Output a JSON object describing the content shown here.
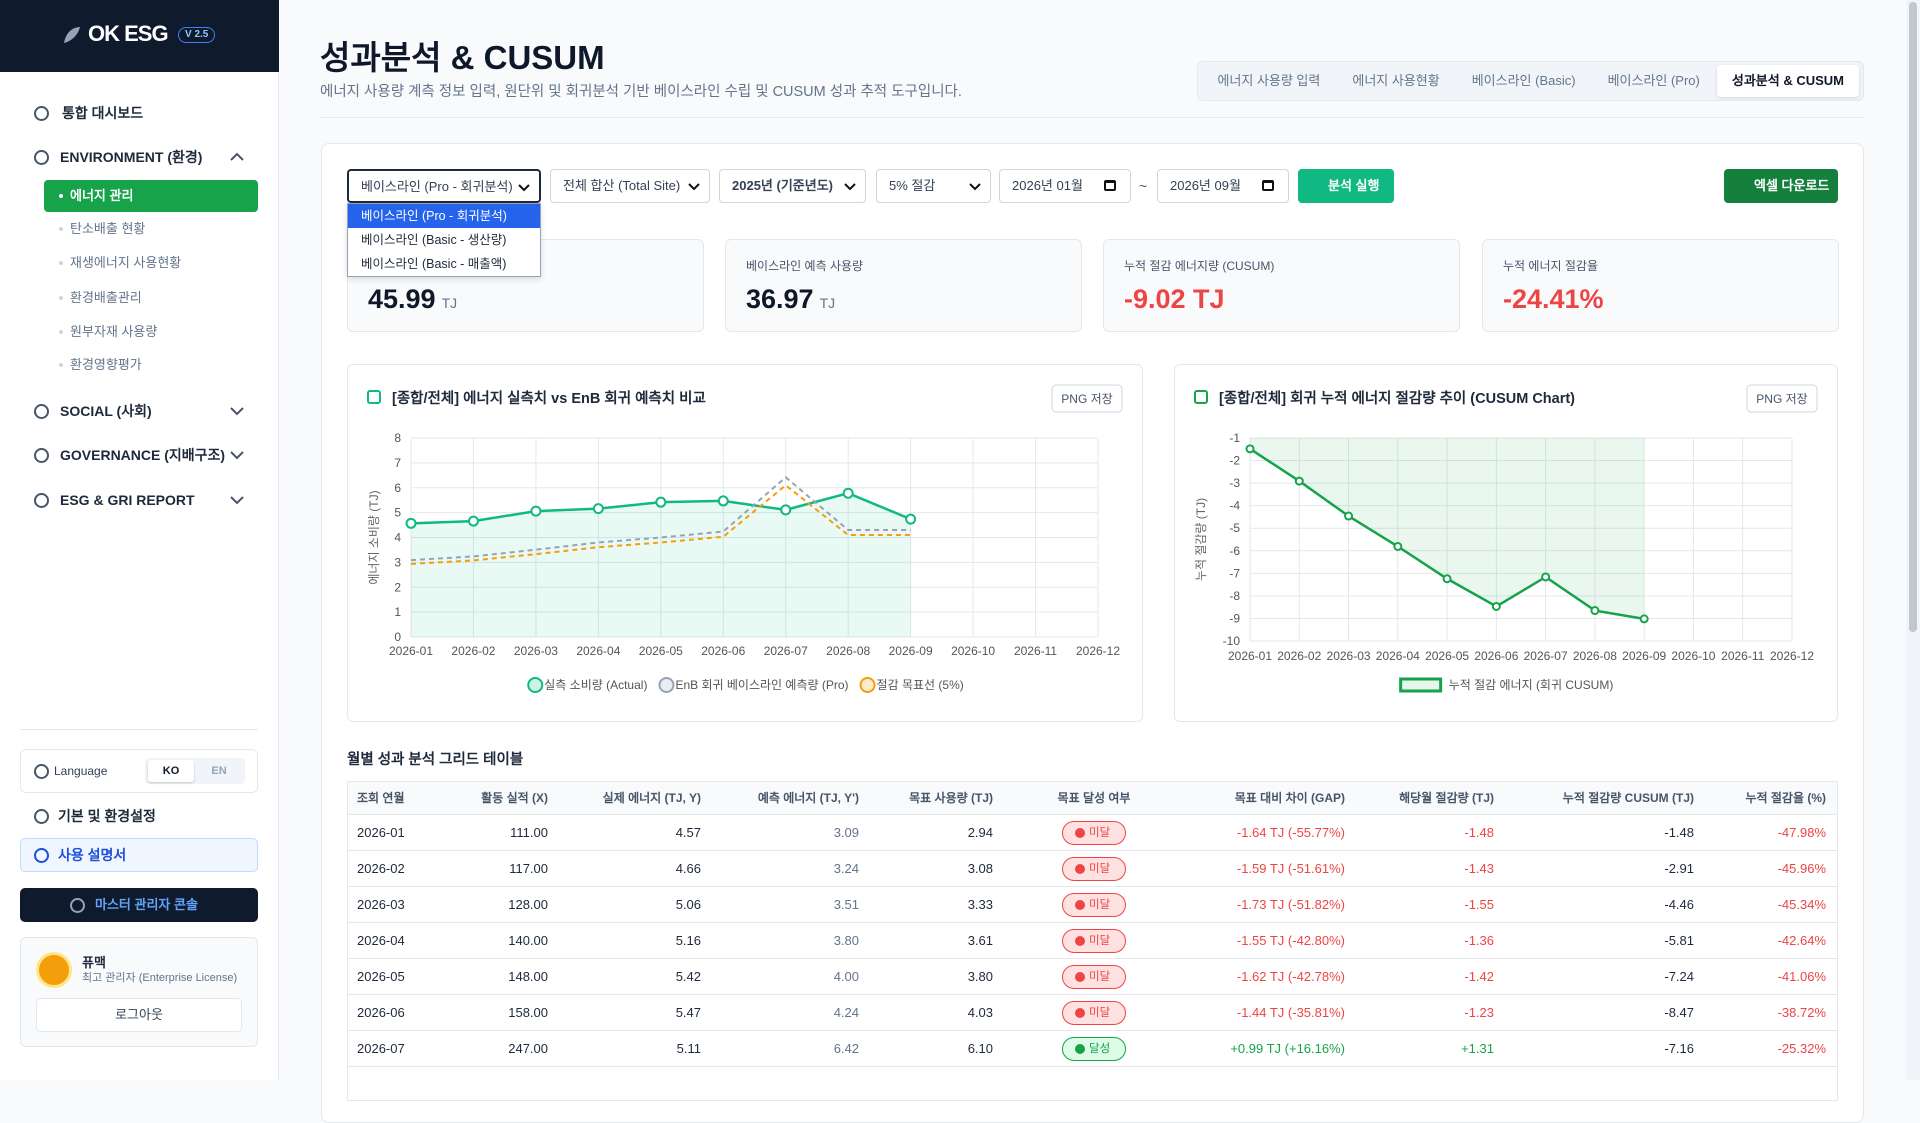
{
  "sidebar": {
    "logo": "OK ESG",
    "version": "V 2.5",
    "dashboard": "통합 대시보드",
    "sections": [
      {
        "label": "ENVIRONMENT (환경)",
        "items": [
          "에너지 관리",
          "탄소배출 현황",
          "재생에너지 사용현황",
          "환경배출관리",
          "원부자재 사용량",
          "환경영향평가"
        ]
      },
      {
        "label": "SOCIAL (사회)"
      },
      {
        "label": "GOVERNANCE (지배구조)"
      },
      {
        "label": "ESG & GRI REPORT"
      }
    ],
    "language": "Language",
    "languages": [
      "KO",
      "EN"
    ],
    "settings": "기본 및 환경설정",
    "manual": "사용 설명서",
    "admin_console": "마스터 관리자 콘솔",
    "user": {
      "name": "퓨맥",
      "role": "최고 관리자 (Enterprise License)"
    },
    "logout": "로그아웃"
  },
  "header": {
    "title": "성과분석 & CUSUM",
    "subtitle": "에너지 사용량 계측 정보 입력, 원단위 및 회귀분석 기반 베이스라인 수립 및 CUSUM 성과 추적 도구입니다.",
    "tabs": [
      "에너지 사용량 입력",
      "에너지 사용현황",
      "베이스라인 (Basic)",
      "베이스라인 (Pro)",
      "성과분석 & CUSUM"
    ],
    "active_tab": 4
  },
  "filters": {
    "baseline": "베이스라인 (Pro - 회귀분석)",
    "baseline_options": [
      "베이스라인 (Pro - 회귀분석)",
      "베이스라인 (Basic - 생산량)",
      "베이스라인 (Basic - 매출액)"
    ],
    "site": "전체 합산 (Total Site)",
    "base_year": "2025년 (기준년도)",
    "target": "5% 절감",
    "start": "2026년 01월",
    "separator": "~",
    "end": "2026년 09월",
    "run": "분석 실행",
    "export": "엑셀 다운로드"
  },
  "kpis": [
    {
      "value": "45.99",
      "unit": "TJ"
    },
    {
      "label": "베이스라인 예측 사용량",
      "value": "36.97",
      "unit": "TJ"
    },
    {
      "label": "누적 절감 에너지량 (CUSUM)",
      "value": "-9.02 TJ"
    },
    {
      "label": "누적 에너지 절감율",
      "value": "-24.41%"
    }
  ],
  "charts": [
    {
      "type": "line",
      "title": "[종합/전체] 에너지 실측치 vs EnB 회귀 예측치 비교",
      "button": "PNG 저장",
      "y_label": "에너지 소비량 (TJ)",
      "categories": [
        "2026-01",
        "2026-02",
        "2026-03",
        "2026-04",
        "2026-05",
        "2026-06",
        "2026-07",
        "2026-08",
        "2026-09",
        "2026-10",
        "2026-11",
        "2026-12"
      ],
      "ylim": [
        0,
        8
      ],
      "yticks": [
        0,
        1,
        2,
        3,
        4,
        5,
        6,
        7,
        8
      ],
      "grid": true,
      "legend": "bottom",
      "legend_marker": "circle",
      "series": [
        {
          "name": "실측 소비량 (Actual)",
          "color": "#10b981",
          "fill": true,
          "points": true,
          "dash": false,
          "values": [
            4.57,
            4.66,
            5.06,
            5.16,
            5.42,
            5.47,
            5.11,
            5.78,
            4.74,
            null,
            null,
            null
          ]
        },
        {
          "name": "EnB 회귀 베이스라인 예측량 (Pro)",
          "color": "#94a3b8",
          "fill": false,
          "points": false,
          "dash": true,
          "values": [
            3.09,
            3.24,
            3.51,
            3.8,
            4.0,
            4.24,
            6.42,
            4.3,
            4.3,
            null,
            null,
            null
          ]
        },
        {
          "name": "절감 목표선 (5%)",
          "color": "#f59e0b",
          "fill": false,
          "points": false,
          "dash": true,
          "values": [
            2.94,
            3.08,
            3.33,
            3.61,
            3.8,
            4.03,
            6.1,
            4.1,
            4.1,
            null,
            null,
            null
          ]
        }
      ]
    },
    {
      "type": "line",
      "title": "[종합/전체] 회귀 누적 에너지 절감량 추이 (CUSUM Chart)",
      "button": "PNG 저장",
      "y_label": "누적 절감량 (TJ)",
      "categories": [
        "2026-01",
        "2026-02",
        "2026-03",
        "2026-04",
        "2026-05",
        "2026-06",
        "2026-07",
        "2026-08",
        "2026-09",
        "2026-10",
        "2026-11",
        "2026-12"
      ],
      "ylim": [
        -10,
        -1
      ],
      "yticks": [
        -10,
        -9,
        -8,
        -7,
        -6,
        -5,
        -4,
        -3,
        -2,
        -1
      ],
      "grid": true,
      "legend": "bottom",
      "legend_marker": "rect",
      "series": [
        {
          "name": "누적 절감 에너지 (회귀 CUSUM)",
          "color": "#16a34a",
          "fill": true,
          "points": true,
          "dash": false,
          "values": [
            -1.48,
            -2.91,
            -4.46,
            -5.81,
            -7.24,
            -8.47,
            -7.16,
            -8.65,
            -9.02,
            null,
            null,
            null
          ]
        }
      ]
    }
  ],
  "table": {
    "title": "월별 성과 분석 그리드 테이블",
    "columns": [
      "조회 연월",
      "활동 실적 (X)",
      "실제 에너지 (TJ, Y)",
      "예측 에너지 (TJ, Y')",
      "목표 사용량 (TJ)",
      "목표 달성 여부",
      "목표 대비 차이 (GAP)",
      "해당월 절감량 (TJ)",
      "누적 절감량 CUSUM (TJ)",
      "누적 절감율 (%)"
    ],
    "rows": [
      [
        "2026-01",
        "111.00",
        "4.57",
        "3.09",
        "2.94",
        "미달",
        "-1.64 TJ (-55.77%)",
        "-1.48",
        "-1.48",
        "-47.98%"
      ],
      [
        "2026-02",
        "117.00",
        "4.66",
        "3.24",
        "3.08",
        "미달",
        "-1.59 TJ (-51.61%)",
        "-1.43",
        "-2.91",
        "-45.96%"
      ],
      [
        "2026-03",
        "128.00",
        "5.06",
        "3.51",
        "3.33",
        "미달",
        "-1.73 TJ (-51.82%)",
        "-1.55",
        "-4.46",
        "-45.34%"
      ],
      [
        "2026-04",
        "140.00",
        "5.16",
        "3.80",
        "3.61",
        "미달",
        "-1.55 TJ (-42.80%)",
        "-1.36",
        "-5.81",
        "-42.64%"
      ],
      [
        "2026-05",
        "148.00",
        "5.42",
        "4.00",
        "3.80",
        "미달",
        "-1.62 TJ (-42.78%)",
        "-1.42",
        "-7.24",
        "-41.06%"
      ],
      [
        "2026-06",
        "158.00",
        "5.47",
        "4.24",
        "4.03",
        "미달",
        "-1.44 TJ (-35.81%)",
        "-1.23",
        "-8.47",
        "-38.72%"
      ],
      [
        "2026-07",
        "247.00",
        "5.11",
        "6.42",
        "6.10",
        "달성",
        "+0.99 TJ (+16.16%)",
        "+1.31",
        "-7.16",
        "-25.32%"
      ]
    ]
  }
}
